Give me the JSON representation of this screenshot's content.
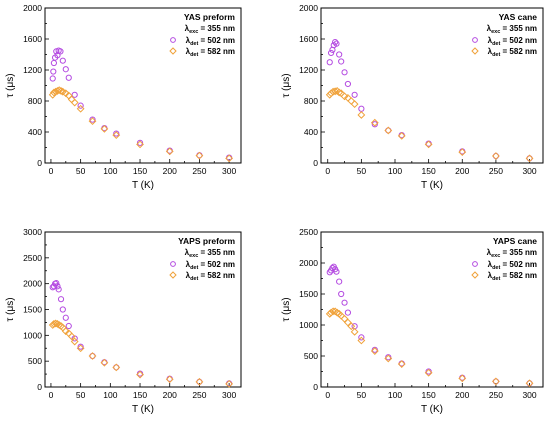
{
  "chart_data": [
    {
      "type": "scatter",
      "title": "YAS preform",
      "xlabel": "T (K)",
      "ylabel": "τ (μs)",
      "xlim": [
        -10,
        320
      ],
      "ylim": [
        0,
        2000
      ],
      "xticks": [
        0,
        50,
        100,
        150,
        200,
        250,
        300
      ],
      "yticks": [
        0,
        400,
        800,
        1200,
        1600,
        2000
      ],
      "legend_position": "top-right",
      "excitation_label": "λ",
      "excitation_sub": "exc",
      "excitation_value": " = 355 nm",
      "series": [
        {
          "name": "λdet = 502 nm",
          "label": "λ",
          "sub": "det",
          "value": " = 502 nm",
          "color": "#b44be1",
          "marker": "circle",
          "points": [
            [
              3,
              1090
            ],
            [
              4,
              1180
            ],
            [
              5,
              1290
            ],
            [
              7,
              1360
            ],
            [
              9,
              1440
            ],
            [
              11,
              1390
            ],
            [
              13,
              1450
            ],
            [
              16,
              1440
            ],
            [
              20,
              1320
            ],
            [
              25,
              1210
            ],
            [
              30,
              1100
            ],
            [
              40,
              880
            ],
            [
              50,
              740
            ],
            [
              70,
              560
            ],
            [
              90,
              450
            ],
            [
              110,
              380
            ],
            [
              150,
              260
            ],
            [
              200,
              160
            ],
            [
              250,
              100
            ],
            [
              300,
              70
            ]
          ]
        },
        {
          "name": "λdet = 582 nm",
          "label": "λ",
          "sub": "det",
          "value": " = 582 nm",
          "color": "#f0a23a",
          "marker": "diamond",
          "points": [
            [
              3,
              880
            ],
            [
              5,
              910
            ],
            [
              8,
              920
            ],
            [
              11,
              930
            ],
            [
              14,
              940
            ],
            [
              17,
              930
            ],
            [
              20,
              920
            ],
            [
              25,
              900
            ],
            [
              30,
              870
            ],
            [
              35,
              820
            ],
            [
              40,
              780
            ],
            [
              50,
              700
            ],
            [
              70,
              540
            ],
            [
              90,
              440
            ],
            [
              110,
              360
            ],
            [
              150,
              240
            ],
            [
              200,
              150
            ],
            [
              250,
              95
            ],
            [
              300,
              60
            ]
          ]
        }
      ]
    },
    {
      "type": "scatter",
      "title": "YAS cane",
      "xlabel": "T (K)",
      "ylabel": "τ (μs)",
      "xlim": [
        -10,
        320
      ],
      "ylim": [
        0,
        2000
      ],
      "xticks": [
        0,
        50,
        100,
        150,
        200,
        250,
        300
      ],
      "yticks": [
        0,
        400,
        800,
        1200,
        1600,
        2000
      ],
      "legend_position": "top-right",
      "excitation_label": "λ",
      "excitation_sub": "exc",
      "excitation_value": " = 355 nm",
      "series": [
        {
          "name": "λdet = 502 nm",
          "label": "λ",
          "sub": "det",
          "value": " = 502 nm",
          "color": "#b44be1",
          "marker": "circle",
          "points": [
            [
              3,
              1300
            ],
            [
              5,
              1420
            ],
            [
              7,
              1460
            ],
            [
              9,
              1520
            ],
            [
              11,
              1560
            ],
            [
              13,
              1540
            ],
            [
              17,
              1400
            ],
            [
              20,
              1310
            ],
            [
              25,
              1170
            ],
            [
              30,
              1020
            ],
            [
              40,
              880
            ],
            [
              50,
              700
            ],
            [
              70,
              500
            ],
            [
              90,
              420
            ],
            [
              110,
              360
            ],
            [
              150,
              250
            ],
            [
              200,
              150
            ],
            [
              250,
              90
            ],
            [
              300,
              60
            ]
          ]
        },
        {
          "name": "λdet = 582 nm",
          "label": "λ",
          "sub": "det",
          "value": " = 582 nm",
          "color": "#f0a23a",
          "marker": "diamond",
          "points": [
            [
              3,
              880
            ],
            [
              5,
              900
            ],
            [
              8,
              920
            ],
            [
              11,
              925
            ],
            [
              14,
              930
            ],
            [
              17,
              910
            ],
            [
              20,
              900
            ],
            [
              25,
              860
            ],
            [
              30,
              840
            ],
            [
              35,
              800
            ],
            [
              40,
              760
            ],
            [
              50,
              620
            ],
            [
              70,
              520
            ],
            [
              90,
              420
            ],
            [
              110,
              350
            ],
            [
              150,
              240
            ],
            [
              200,
              140
            ],
            [
              250,
              90
            ],
            [
              300,
              60
            ]
          ]
        }
      ]
    },
    {
      "type": "scatter",
      "title": "YAPS preform",
      "xlabel": "T (K)",
      "ylabel": "τ (μs)",
      "xlim": [
        -10,
        320
      ],
      "ylim": [
        0,
        3000
      ],
      "xticks": [
        0,
        50,
        100,
        150,
        200,
        250,
        300
      ],
      "yticks": [
        0,
        500,
        1000,
        1500,
        2000,
        2500,
        3000
      ],
      "legend_position": "top-right",
      "excitation_label": "λ",
      "excitation_sub": "exc",
      "excitation_value": " = 355 nm",
      "series": [
        {
          "name": "λdet = 502 nm",
          "label": "λ",
          "sub": "det",
          "value": " = 502 nm",
          "color": "#b44be1",
          "marker": "circle",
          "points": [
            [
              3,
              1930
            ],
            [
              5,
              1950
            ],
            [
              7,
              2000
            ],
            [
              9,
              2010
            ],
            [
              11,
              1950
            ],
            [
              13,
              1890
            ],
            [
              17,
              1700
            ],
            [
              20,
              1500
            ],
            [
              25,
              1340
            ],
            [
              30,
              1180
            ],
            [
              40,
              940
            ],
            [
              50,
              780
            ],
            [
              70,
              600
            ],
            [
              90,
              480
            ],
            [
              110,
              380
            ],
            [
              150,
              260
            ],
            [
              200,
              160
            ],
            [
              250,
              100
            ],
            [
              300,
              70
            ]
          ]
        },
        {
          "name": "λdet = 582 nm",
          "label": "λ",
          "sub": "det",
          "value": " = 582 nm",
          "color": "#f0a23a",
          "marker": "diamond",
          "points": [
            [
              3,
              1200
            ],
            [
              5,
              1220
            ],
            [
              8,
              1230
            ],
            [
              11,
              1220
            ],
            [
              14,
              1200
            ],
            [
              17,
              1180
            ],
            [
              20,
              1150
            ],
            [
              25,
              1080
            ],
            [
              30,
              1040
            ],
            [
              35,
              980
            ],
            [
              40,
              880
            ],
            [
              50,
              750
            ],
            [
              70,
              600
            ],
            [
              90,
              470
            ],
            [
              110,
              380
            ],
            [
              150,
              240
            ],
            [
              200,
              150
            ],
            [
              250,
              100
            ],
            [
              300,
              60
            ]
          ]
        }
      ]
    },
    {
      "type": "scatter",
      "title": "YAPS cane",
      "xlabel": "T (K)",
      "ylabel": "τ (μs)",
      "xlim": [
        -10,
        320
      ],
      "ylim": [
        0,
        2500
      ],
      "xticks": [
        0,
        50,
        100,
        150,
        200,
        250,
        300
      ],
      "yticks": [
        0,
        500,
        1000,
        1500,
        2000,
        2500
      ],
      "legend_position": "top-right",
      "excitation_label": "λ",
      "excitation_sub": "exc",
      "excitation_value": " = 355 nm",
      "series": [
        {
          "name": "λdet = 502 nm",
          "label": "λ",
          "sub": "det",
          "value": " = 502 nm",
          "color": "#b44be1",
          "marker": "circle",
          "points": [
            [
              3,
              1850
            ],
            [
              5,
              1880
            ],
            [
              7,
              1920
            ],
            [
              9,
              1940
            ],
            [
              11,
              1900
            ],
            [
              13,
              1860
            ],
            [
              17,
              1700
            ],
            [
              20,
              1500
            ],
            [
              25,
              1360
            ],
            [
              30,
              1200
            ],
            [
              40,
              980
            ],
            [
              50,
              800
            ],
            [
              70,
              600
            ],
            [
              90,
              480
            ],
            [
              110,
              380
            ],
            [
              150,
              250
            ],
            [
              200,
              150
            ],
            [
              250,
              90
            ],
            [
              300,
              60
            ]
          ]
        },
        {
          "name": "λdet = 582 nm",
          "label": "λ",
          "sub": "det",
          "value": " = 582 nm",
          "color": "#f0a23a",
          "marker": "diamond",
          "points": [
            [
              3,
              1180
            ],
            [
              5,
              1200
            ],
            [
              8,
              1220
            ],
            [
              11,
              1220
            ],
            [
              14,
              1200
            ],
            [
              17,
              1180
            ],
            [
              20,
              1150
            ],
            [
              25,
              1100
            ],
            [
              30,
              1040
            ],
            [
              35,
              980
            ],
            [
              40,
              890
            ],
            [
              50,
              750
            ],
            [
              70,
              580
            ],
            [
              90,
              460
            ],
            [
              110,
              370
            ],
            [
              150,
              230
            ],
            [
              200,
              140
            ],
            [
              250,
              90
            ],
            [
              300,
              60
            ]
          ]
        }
      ]
    }
  ]
}
